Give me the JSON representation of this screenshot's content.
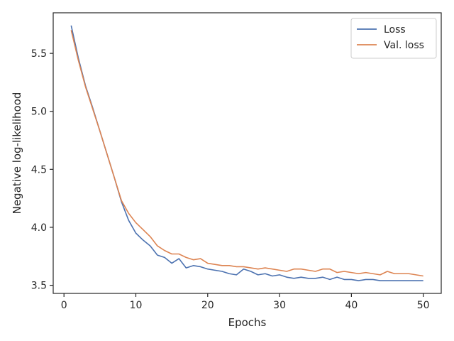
{
  "chart_data": {
    "type": "line",
    "xlabel": "Epochs",
    "ylabel": "Negative log-likelihood",
    "xlim": [
      -1.5,
      52.5
    ],
    "ylim": [
      3.43,
      5.85
    ],
    "xticks": [
      0,
      10,
      20,
      30,
      40,
      50
    ],
    "yticks": [
      3.5,
      4.0,
      4.5,
      5.0,
      5.5
    ],
    "ytick_labels": [
      "3.5",
      "4.0",
      "4.5",
      "5.0",
      "5.5"
    ],
    "grid": false,
    "legend_position": "top-right",
    "x": [
      1,
      2,
      3,
      4,
      5,
      6,
      7,
      8,
      9,
      10,
      11,
      12,
      13,
      14,
      15,
      16,
      17,
      18,
      19,
      20,
      21,
      22,
      23,
      24,
      25,
      26,
      27,
      28,
      29,
      30,
      31,
      32,
      33,
      34,
      35,
      36,
      37,
      38,
      39,
      40,
      41,
      42,
      43,
      44,
      45,
      46,
      47,
      48,
      49,
      50
    ],
    "series": [
      {
        "name": "Loss",
        "color": "#4c72b0",
        "values": [
          5.74,
          5.46,
          5.22,
          5.03,
          4.83,
          4.63,
          4.43,
          4.22,
          4.06,
          3.95,
          3.89,
          3.84,
          3.76,
          3.74,
          3.69,
          3.73,
          3.65,
          3.67,
          3.66,
          3.64,
          3.63,
          3.62,
          3.6,
          3.59,
          3.64,
          3.62,
          3.59,
          3.6,
          3.58,
          3.59,
          3.57,
          3.56,
          3.57,
          3.56,
          3.56,
          3.57,
          3.55,
          3.57,
          3.55,
          3.55,
          3.54,
          3.55,
          3.55,
          3.54,
          3.54,
          3.54,
          3.54,
          3.54,
          3.54,
          3.54
        ]
      },
      {
        "name": "Val. loss",
        "color": "#dd8452",
        "values": [
          5.7,
          5.44,
          5.21,
          5.02,
          4.83,
          4.63,
          4.43,
          4.23,
          4.12,
          4.04,
          3.98,
          3.92,
          3.84,
          3.8,
          3.77,
          3.77,
          3.74,
          3.72,
          3.73,
          3.69,
          3.68,
          3.67,
          3.67,
          3.66,
          3.66,
          3.65,
          3.64,
          3.65,
          3.64,
          3.63,
          3.62,
          3.64,
          3.64,
          3.63,
          3.62,
          3.64,
          3.64,
          3.61,
          3.62,
          3.61,
          3.6,
          3.61,
          3.6,
          3.59,
          3.62,
          3.6,
          3.6,
          3.6,
          3.59,
          3.58
        ]
      }
    ]
  }
}
